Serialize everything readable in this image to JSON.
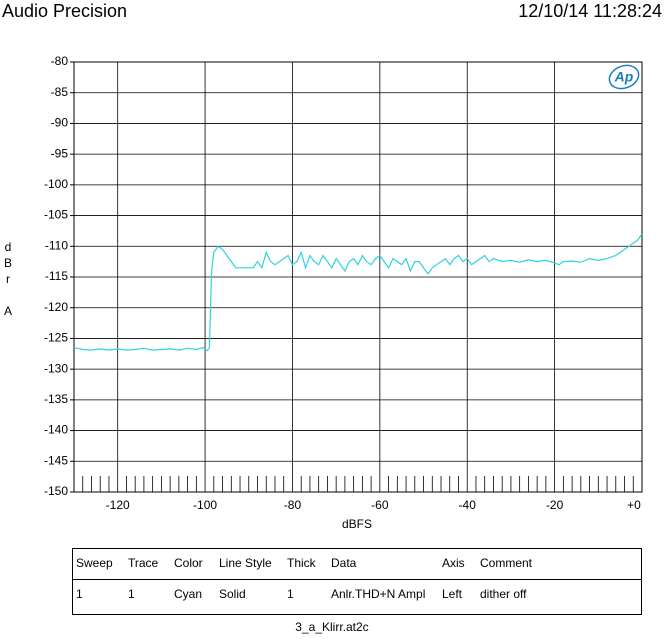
{
  "header": {
    "title": "Audio Precision",
    "timestamp": "12/10/14 11:28:24"
  },
  "chart_data": {
    "type": "line",
    "logo": "Ap",
    "xlabel": "dBFS",
    "ylabel": "dBr A",
    "xlim": [
      -130,
      0
    ],
    "ylim": [
      -150,
      -80
    ],
    "xticks": [
      -120,
      -100,
      -80,
      -60,
      -40,
      -20,
      {
        "value": 0,
        "label": "+0"
      }
    ],
    "xminorticks": [
      -128,
      -126,
      -124,
      -122,
      -118,
      -116,
      -114,
      -112,
      -110,
      -108,
      -106,
      -104,
      -102,
      -98,
      -96,
      -94,
      -92,
      -90,
      -88,
      -86,
      -84,
      -82,
      -78,
      -76,
      -74,
      -72,
      -70,
      -68,
      -66,
      -64,
      -62,
      -58,
      -56,
      -54,
      -52,
      -50,
      -48,
      -46,
      -44,
      -42,
      -38,
      -36,
      -34,
      -32,
      -30,
      -28,
      -26,
      -24,
      -22,
      -18,
      -16,
      -14,
      -12,
      -10,
      -8,
      -6,
      -4,
      -2
    ],
    "yticks": [
      -80,
      -85,
      -90,
      -95,
      -100,
      -105,
      -110,
      -115,
      -120,
      -125,
      -130,
      -135,
      -140,
      -145,
      -150
    ],
    "grid": true,
    "series": [
      {
        "color": "#2fd3dc",
        "x": [
          -130,
          -128,
          -126,
          -124,
          -122,
          -120,
          -118,
          -116,
          -114,
          -112,
          -110,
          -108,
          -106,
          -104,
          -102,
          -100.5,
          -99.5,
          -99,
          -98.5,
          -98,
          -97,
          -96,
          -95,
          -94,
          -93,
          -91,
          -89,
          -88,
          -87,
          -86,
          -85,
          -84,
          -82,
          -81,
          -80,
          -79,
          -78,
          -77,
          -76,
          -75,
          -74,
          -73,
          -72,
          -71,
          -70,
          -69,
          -68,
          -67,
          -66,
          -65,
          -64,
          -63,
          -62,
          -61,
          -60,
          -59,
          -58,
          -57,
          -56,
          -55,
          -54,
          -53,
          -52,
          -51,
          -50,
          -49,
          -48,
          -47,
          -46,
          -45,
          -44,
          -43,
          -42,
          -41,
          -40,
          -39,
          -38,
          -37,
          -36,
          -35,
          -34,
          -32,
          -30,
          -28,
          -26,
          -24,
          -22,
          -20,
          -19,
          -18,
          -16,
          -14,
          -12,
          -10,
          -8,
          -6,
          -4,
          -2,
          -1,
          0
        ],
        "values": [
          -126.5,
          -126.8,
          -126.9,
          -126.7,
          -126.9,
          -126.7,
          -126.9,
          -126.8,
          -126.6,
          -126.9,
          -126.8,
          -126.7,
          -126.9,
          -126.6,
          -126.8,
          -126.5,
          -127,
          -126.5,
          -114,
          -111,
          -110,
          -110.5,
          -111.5,
          -112.5,
          -113.5,
          -113.5,
          -113.5,
          -112.5,
          -113.5,
          -111,
          -112.5,
          -113,
          -112,
          -111.5,
          -113,
          -112.5,
          -111,
          -113.5,
          -111.5,
          -112.5,
          -113,
          -111.5,
          -112.5,
          -113.5,
          -112,
          -113,
          -114,
          -112.5,
          -112,
          -113,
          -111.5,
          -112.5,
          -113,
          -112,
          -111.5,
          -112.5,
          -113.5,
          -112,
          -112.5,
          -113,
          -112,
          -114,
          -112.5,
          -112.5,
          -113.5,
          -114.5,
          -113.5,
          -113,
          -112.5,
          -112,
          -113,
          -112,
          -111.5,
          -112.5,
          -112,
          -113,
          -112.5,
          -112,
          -111.5,
          -112.5,
          -112,
          -112.5,
          -112.3,
          -112.6,
          -112.2,
          -112.5,
          -112.3,
          -112.7,
          -113,
          -112.5,
          -112.4,
          -112.6,
          -112,
          -112.3,
          -112,
          -111.5,
          -110.5,
          -109.5,
          -109,
          -108
        ]
      }
    ]
  },
  "table": {
    "header": [
      "Sweep",
      "Trace",
      "Color",
      "Line Style",
      "Thick",
      "Data",
      "Axis",
      "Comment"
    ],
    "rows": [
      [
        "1",
        "1",
        "Cyan",
        "Solid",
        "1",
        "Anlr.THD+N Ampl",
        "Left",
        "dither off"
      ]
    ]
  },
  "footer": "3_a_Klirr.at2c"
}
